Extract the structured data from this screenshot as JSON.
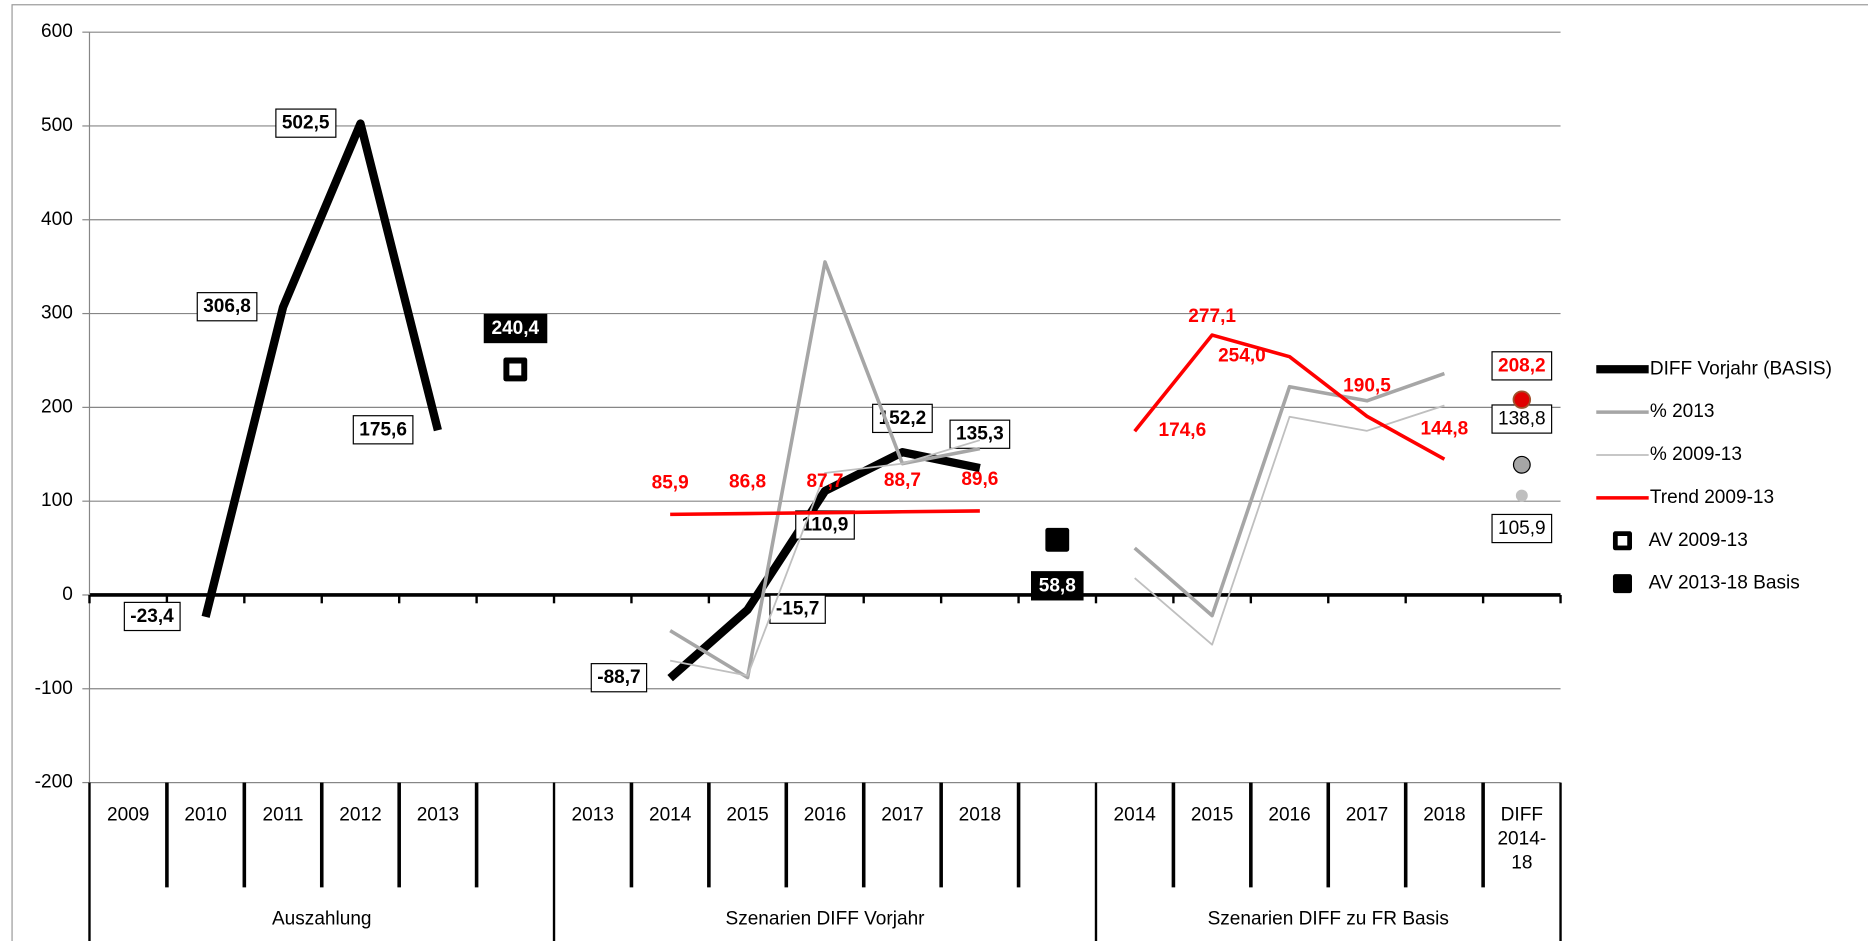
{
  "chart_data": {
    "type": "line",
    "categories": [
      "2009",
      "2010",
      "2011",
      "2012",
      "2013",
      null,
      "2013",
      "2014",
      "2015",
      "2016",
      "2017",
      "2018",
      null,
      "2014",
      "2015",
      "2016",
      "2017",
      "2018",
      "DIFF 2014-18"
    ],
    "groups": [
      {
        "name": "Auszahlung",
        "span": 6
      },
      {
        "name": "Szenarien DIFF Vorjahr",
        "span": 7
      },
      {
        "name": "Szenarien DIFF zu FR Basis",
        "span": 6
      }
    ],
    "ylim": [
      -200,
      600
    ],
    "yticks": [
      -200,
      -100,
      0,
      100,
      200,
      300,
      400,
      500,
      600
    ],
    "grid": true,
    "legend": "right",
    "series": [
      {
        "name": "DIFF Vorjahr (BASIS)",
        "color": "#000000",
        "style": "line",
        "values": [
          null,
          -23.4,
          306.8,
          502.5,
          175.6,
          null,
          null,
          -88.7,
          -15.7,
          110.9,
          152.2,
          135.3,
          null,
          null,
          null,
          null,
          null,
          null,
          null
        ],
        "value_labels": [
          null,
          "-23,4",
          "306,8",
          "502,5",
          "175,6",
          null,
          null,
          "-88,7",
          "-15,7",
          "110,9",
          "152,2",
          "135,3",
          null,
          null,
          null,
          null,
          null,
          null,
          null
        ]
      },
      {
        "name": "% 2013",
        "color": "#a6a6a6",
        "style": "line",
        "dot_last": true,
        "values": [
          null,
          null,
          null,
          null,
          null,
          null,
          null,
          -38,
          -88,
          355,
          140,
          156,
          null,
          50,
          -22,
          222,
          207,
          236,
          138.8
        ],
        "value_labels": [
          null,
          null,
          null,
          null,
          null,
          null,
          null,
          null,
          null,
          null,
          null,
          null,
          null,
          null,
          null,
          null,
          null,
          null,
          "138,8"
        ]
      },
      {
        "name": "% 2009-13",
        "color": "#bfbfbf",
        "style": "line",
        "dot_last": true,
        "values": [
          null,
          null,
          null,
          null,
          null,
          null,
          null,
          -70,
          -86,
          130,
          140,
          165,
          null,
          18,
          -53,
          190,
          175,
          202,
          105.9
        ],
        "value_labels": [
          null,
          null,
          null,
          null,
          null,
          null,
          null,
          null,
          null,
          null,
          null,
          null,
          null,
          null,
          null,
          null,
          null,
          null,
          "105,9"
        ]
      },
      {
        "name": "Trend 2009-13",
        "color": "#ff0000",
        "style": "line",
        "dot_last": true,
        "values": [
          null,
          null,
          null,
          null,
          null,
          null,
          null,
          85.9,
          86.8,
          87.7,
          88.7,
          89.6,
          null,
          174.6,
          277.1,
          254.0,
          190.5,
          144.8,
          208.2
        ],
        "value_labels": [
          null,
          null,
          null,
          null,
          null,
          null,
          null,
          "85,9",
          "86,8",
          "87,7",
          "88,7",
          "89,6",
          null,
          "174,6",
          "277,1",
          "254,0",
          "190,5",
          "144,8",
          "208,2"
        ]
      },
      {
        "name": "AV 2009-13",
        "color": "#000000",
        "style": "hollow-square",
        "values": [
          null,
          null,
          null,
          null,
          null,
          240.4,
          null,
          null,
          null,
          null,
          null,
          null,
          null,
          null,
          null,
          null,
          null,
          null,
          null
        ],
        "value_labels": [
          null,
          null,
          null,
          null,
          null,
          "240,4",
          null,
          null,
          null,
          null,
          null,
          null,
          null,
          null,
          null,
          null,
          null,
          null,
          null
        ]
      },
      {
        "name": "AV 2013-18 Basis",
        "color": "#000000",
        "style": "square",
        "values": [
          null,
          null,
          null,
          null,
          null,
          null,
          null,
          null,
          null,
          null,
          null,
          null,
          58.8,
          null,
          null,
          null,
          null,
          null,
          null
        ],
        "value_labels": [
          null,
          null,
          null,
          null,
          null,
          null,
          null,
          null,
          null,
          null,
          null,
          null,
          "58,8",
          null,
          null,
          null,
          null,
          null,
          null
        ]
      }
    ]
  }
}
